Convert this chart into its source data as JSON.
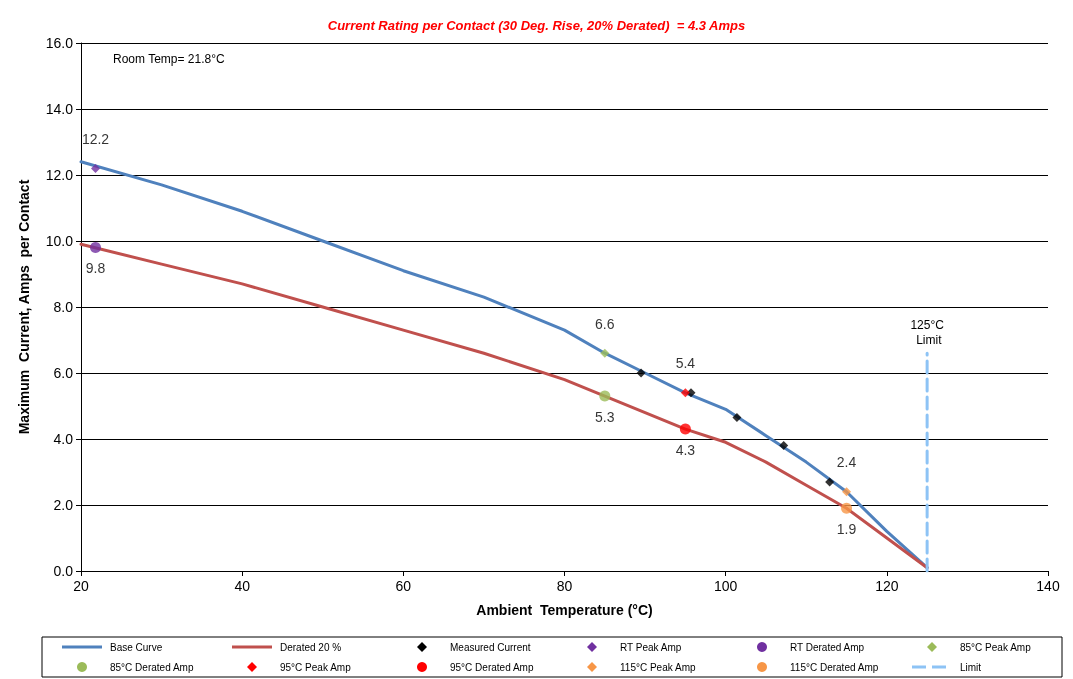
{
  "chart_data": {
    "type": "line",
    "title": "Current Rating per Contact (30 Deg. Rise, 20% Derated)  = 4.3 Amps",
    "xlabel": "Ambient  Temperature (°C)",
    "ylabel": "Maximum  Current, Amps  per Contact",
    "xlim": [
      20,
      140
    ],
    "xticks": [
      20,
      40,
      60,
      80,
      100,
      120,
      140
    ],
    "ylim": [
      0,
      16
    ],
    "yticks": [
      {
        "value": 0,
        "label": "0.0"
      },
      {
        "value": 2,
        "label": "2.0"
      },
      {
        "value": 4,
        "label": "4.0"
      },
      {
        "value": 6,
        "label": "6.0"
      },
      {
        "value": 8,
        "label": "8.0"
      },
      {
        "value": 10,
        "label": "10.0"
      },
      {
        "value": 12,
        "label": "12.0"
      },
      {
        "value": 14,
        "label": "14.0"
      },
      {
        "value": 16,
        "label": "16.0"
      }
    ],
    "grid": "y",
    "legend": "bottom",
    "annotations": [
      "Room Temp= 21.8°C",
      {
        "text": "125°C Limit",
        "x": 125,
        "y": 6.6
      }
    ],
    "series": [
      {
        "name": "Base Curve",
        "color": "#4f81bd",
        "marker": "none",
        "x": [
          20,
          30,
          40,
          50,
          60,
          70,
          80,
          85,
          90,
          95,
          100,
          105,
          110,
          115,
          120,
          125
        ],
        "values": [
          12.4,
          11.7,
          10.9,
          10.0,
          9.1,
          8.3,
          7.3,
          6.6,
          6.0,
          5.4,
          4.9,
          4.1,
          3.3,
          2.4,
          1.2,
          0.1
        ]
      },
      {
        "name": "Derated 20 %",
        "color": "#c0504d",
        "marker": "none",
        "x": [
          20,
          30,
          40,
          50,
          60,
          70,
          80,
          85,
          90,
          95,
          100,
          105,
          110,
          115,
          120,
          125
        ],
        "values": [
          9.9,
          9.3,
          8.7,
          8.0,
          7.3,
          6.6,
          5.8,
          5.3,
          4.8,
          4.3,
          3.9,
          3.3,
          2.6,
          1.9,
          1.0,
          0.1
        ]
      },
      {
        "name": "Measured Current",
        "type": "scatter",
        "color": "#000000",
        "marker": "diamond",
        "x": [
          89.5,
          95.7,
          101.4,
          107.2,
          112.9
        ],
        "values": [
          6.0,
          5.4,
          4.65,
          3.8,
          2.7
        ]
      },
      {
        "name": "RT Peak Amp",
        "type": "scatter",
        "color": "#7030a0",
        "marker": "diamond",
        "data_labels": true,
        "x": [
          21.8
        ],
        "values": [
          12.2
        ]
      },
      {
        "name": "RT Derated Amp",
        "type": "scatter",
        "color": "#7030a0",
        "marker": "circle",
        "data_labels": true,
        "x": [
          21.8
        ],
        "values": [
          9.8
        ]
      },
      {
        "name": "85°C Peak Amp",
        "type": "scatter",
        "color": "#9bbb59",
        "marker": "diamond",
        "data_labels": true,
        "x": [
          85
        ],
        "values": [
          6.6
        ]
      },
      {
        "name": "85°C Derated Amp",
        "type": "scatter",
        "color": "#9bbb59",
        "marker": "circle",
        "data_labels": true,
        "x": [
          85
        ],
        "values": [
          5.3
        ]
      },
      {
        "name": "95°C Peak Amp",
        "type": "scatter",
        "color": "#ff0000",
        "marker": "diamond",
        "data_labels": true,
        "x": [
          95
        ],
        "values": [
          5.4
        ]
      },
      {
        "name": "95°C Derated Amp",
        "type": "scatter",
        "color": "#ff0000",
        "marker": "circle",
        "data_labels": true,
        "x": [
          95
        ],
        "values": [
          4.3
        ]
      },
      {
        "name": "115°C Peak Amp",
        "type": "scatter",
        "color": "#f79646",
        "marker": "diamond",
        "data_labels": true,
        "x": [
          115
        ],
        "values": [
          2.4
        ]
      },
      {
        "name": "115°C Derated Amp",
        "type": "scatter",
        "color": "#f79646",
        "marker": "circle",
        "data_labels": true,
        "x": [
          115
        ],
        "values": [
          1.9
        ]
      },
      {
        "name": "Limit",
        "color": "#8dc3f5",
        "marker": "none",
        "line_style": "dashed",
        "x": [
          125,
          125
        ],
        "values": [
          0,
          6.6
        ]
      }
    ]
  }
}
